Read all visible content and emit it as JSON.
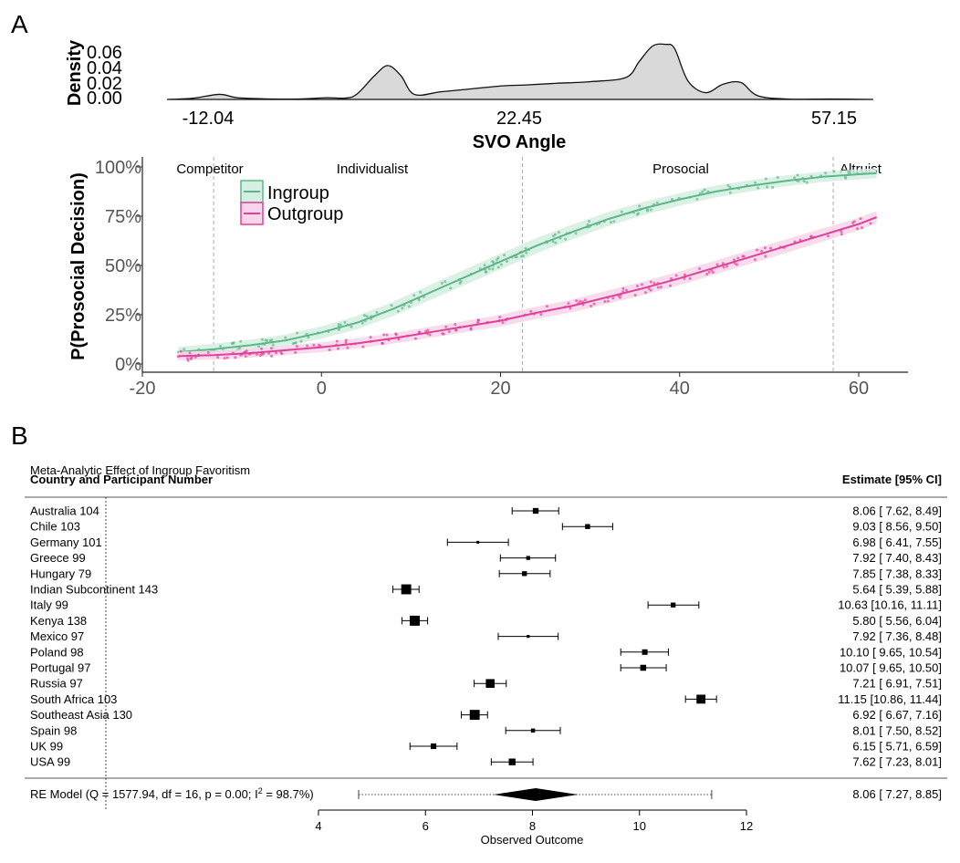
{
  "panel_a": {
    "letter": "A",
    "density": {
      "ylabel": "Density",
      "yticks": [
        "0.00",
        "0.02",
        "0.04",
        "0.06"
      ],
      "xticks": [
        "-12.04",
        "22.45",
        "57.15"
      ],
      "xlabel": "SVO Angle"
    },
    "logistic": {
      "ylabel": "P(Prosocial Decision)",
      "yticks": [
        "0%",
        "25%",
        "50%",
        "75%",
        "100%"
      ],
      "xticks": [
        "-20",
        "0",
        "20",
        "40",
        "60"
      ],
      "regions": [
        "Competitor",
        "Individualist",
        "Prosocial",
        "Altruist"
      ],
      "legend": [
        "Ingroup",
        "Outgroup"
      ]
    }
  },
  "panel_b": {
    "letter": "B",
    "title": "Meta-Analytic Effect of Ingroup Favoritism",
    "left_header": "Country and Participant Number",
    "right_header": "Estimate [95% CI]",
    "rows": [
      {
        "label": "Australia 104",
        "ci_text": "8.06 [ 7.62,  8.49]"
      },
      {
        "label": "Chile 103",
        "ci_text": "9.03 [ 8.56,  9.50]"
      },
      {
        "label": "Germany 101",
        "ci_text": "6.98 [ 6.41,  7.55]"
      },
      {
        "label": "Greece 99",
        "ci_text": "7.92 [ 7.40,  8.43]"
      },
      {
        "label": "Hungary 79",
        "ci_text": "7.85 [ 7.38,  8.33]"
      },
      {
        "label": "Indian Subcontinent 143",
        "ci_text": "5.64 [ 5.39,  5.88]"
      },
      {
        "label": "Italy 99",
        "ci_text": "10.63 [10.16, 11.11]"
      },
      {
        "label": "Kenya 138",
        "ci_text": "5.80 [ 5.56,  6.04]"
      },
      {
        "label": "Mexico 97",
        "ci_text": "7.92 [ 7.36,  8.48]"
      },
      {
        "label": "Poland 98",
        "ci_text": "10.10 [ 9.65, 10.54]"
      },
      {
        "label": "Portugal 97",
        "ci_text": "10.07 [ 9.65, 10.50]"
      },
      {
        "label": "Russia 97",
        "ci_text": "7.21 [ 6.91,  7.51]"
      },
      {
        "label": "South Africa 103",
        "ci_text": "11.15 [10.86, 11.44]"
      },
      {
        "label": "Southeast Asia 130",
        "ci_text": "6.92 [ 6.67,  7.16]"
      },
      {
        "label": "Spain 98",
        "ci_text": "8.01 [ 7.50,  8.52]"
      },
      {
        "label": "UK 99",
        "ci_text": "6.15 [ 5.71,  6.59]"
      },
      {
        "label": "USA 99",
        "ci_text": "7.62 [ 7.23,  8.01]"
      }
    ],
    "re_model": {
      "label_pre": "RE Model (Q = 1577.94, df = 16, p = 0.00; I",
      "label_sup": "2",
      "label_post": " = 98.7%)",
      "ci_text": "8.06 [ 7.27,  8.85]"
    },
    "xticks": [
      "4",
      "6",
      "8",
      "10",
      "12"
    ],
    "xlabel": "Observed Outcome"
  },
  "chart_data": [
    {
      "type": "area",
      "x": [
        -18,
        -15,
        -12.04,
        -10,
        -6,
        -3,
        0,
        3,
        5.5,
        7,
        8.5,
        10,
        13,
        16,
        20,
        22.45,
        26,
        30,
        34,
        35.5,
        37,
        38.5,
        39.5,
        41,
        43,
        45,
        47,
        49,
        53,
        57.15,
        62
      ],
      "values": [
        0.0,
        0.0015,
        0.006,
        0.002,
        0.0005,
        0.0005,
        0.002,
        0.003,
        0.028,
        0.04,
        0.028,
        0.006,
        0.009,
        0.012,
        0.016,
        0.017,
        0.019,
        0.021,
        0.026,
        0.045,
        0.063,
        0.065,
        0.06,
        0.022,
        0.008,
        0.018,
        0.02,
        0.004,
        0.0003,
        0.0005,
        0.0
      ],
      "xlabel": "SVO Angle",
      "ylabel": "Density",
      "xlim": [
        -18,
        62
      ],
      "ylim": [
        0,
        0.07
      ],
      "color": "#d9d9d9"
    },
    {
      "type": "line",
      "x": [
        -16,
        -12,
        -8,
        -4,
        0,
        4,
        8,
        12,
        16,
        20,
        24,
        28,
        32,
        36,
        40,
        44,
        48,
        52,
        56,
        60,
        62
      ],
      "series": [
        {
          "name": "Ingroup",
          "color": "#5cb887",
          "values": [
            0.06,
            0.075,
            0.095,
            0.12,
            0.16,
            0.21,
            0.28,
            0.36,
            0.44,
            0.52,
            0.6,
            0.67,
            0.735,
            0.79,
            0.835,
            0.875,
            0.905,
            0.93,
            0.95,
            0.963,
            0.968
          ]
        },
        {
          "name": "Outgroup",
          "color": "#e0409a",
          "values": [
            0.04,
            0.045,
            0.055,
            0.07,
            0.085,
            0.105,
            0.13,
            0.16,
            0.19,
            0.22,
            0.26,
            0.295,
            0.34,
            0.385,
            0.435,
            0.49,
            0.545,
            0.6,
            0.655,
            0.71,
            0.745
          ]
        }
      ],
      "band_halfwidth": {
        "Ingroup": 0.04,
        "Outgroup": 0.035
      },
      "vlines": [
        -12.04,
        22.45,
        57.15
      ],
      "xlabel": "",
      "ylabel": "P(Prosocial Decision)",
      "xlim": [
        -20,
        65
      ],
      "ylim": [
        0,
        1
      ]
    },
    {
      "type": "forest",
      "title": "Meta-Analytic Effect of Ingroup Favoritism",
      "categories": [
        "Australia 104",
        "Chile 103",
        "Germany 101",
        "Greece 99",
        "Hungary 79",
        "Indian Subcontinent 143",
        "Italy 99",
        "Kenya 138",
        "Mexico 97",
        "Poland 98",
        "Portugal 97",
        "Russia 97",
        "South Africa 103",
        "Southeast Asia 130",
        "Spain 98",
        "UK 99",
        "USA 99"
      ],
      "values": [
        8.06,
        9.03,
        6.98,
        7.92,
        7.85,
        5.64,
        10.63,
        5.8,
        7.92,
        10.1,
        10.07,
        7.21,
        11.15,
        6.92,
        8.01,
        6.15,
        7.62
      ],
      "lower": [
        7.62,
        8.56,
        6.41,
        7.4,
        7.38,
        5.39,
        10.16,
        5.56,
        7.36,
        9.65,
        9.65,
        6.91,
        10.86,
        6.67,
        7.5,
        5.71,
        7.23
      ],
      "upper": [
        8.49,
        9.5,
        7.55,
        8.43,
        8.33,
        5.88,
        11.11,
        6.04,
        8.48,
        10.54,
        10.5,
        7.51,
        11.44,
        7.16,
        8.52,
        6.59,
        8.01
      ],
      "summary": {
        "estimate": 8.06,
        "lower": 7.27,
        "upper": 8.85,
        "pi_lower": 4.75,
        "pi_upper": 11.35
      },
      "xlabel": "Observed Outcome",
      "xlim": [
        4,
        12
      ]
    }
  ]
}
